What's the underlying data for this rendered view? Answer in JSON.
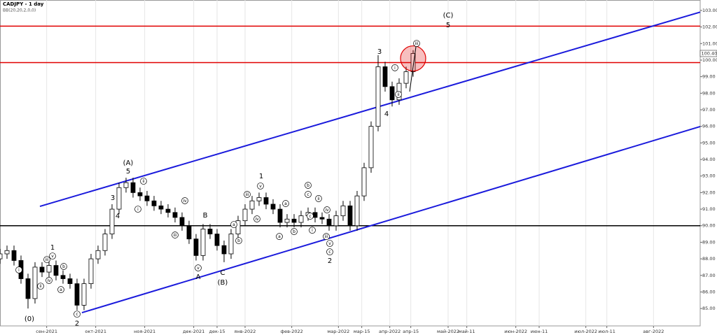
{
  "chart_data": {
    "type": "candlestick",
    "title": "CADJPY - 1 day",
    "subtitle": "BB(20,20,2,0,0)",
    "x": [
      0,
      3,
      6,
      9,
      12,
      15,
      18,
      21,
      24,
      27,
      30,
      33,
      36,
      39,
      42,
      45,
      48,
      51,
      54,
      57,
      60,
      63,
      66,
      69,
      72,
      75,
      78,
      81,
      84,
      87,
      90,
      93,
      96,
      99,
      102,
      105,
      108,
      111,
      114,
      117,
      120,
      123,
      126,
      129,
      132,
      135,
      138,
      141,
      144,
      147,
      150,
      153,
      156,
      159,
      162,
      165,
      168,
      171,
      174,
      177
    ],
    "open": [
      88.0,
      88.3,
      88.5,
      87.9,
      86.8,
      85.6,
      87.5,
      87.2,
      87.6,
      87.0,
      86.8,
      86.5,
      85.2,
      86.5,
      88.0,
      88.5,
      89.5,
      91.0,
      92.3,
      92.6,
      92.0,
      91.8,
      91.5,
      91.2,
      91.0,
      90.8,
      90.5,
      90.0,
      89.2,
      88.2,
      89.8,
      89.5,
      88.8,
      88.3,
      89.5,
      90.3,
      91.0,
      91.5,
      91.7,
      91.3,
      91.0,
      90.2,
      90.4,
      90.2,
      90.6,
      90.8,
      90.5,
      90.4,
      90.0,
      90.6,
      91.2,
      90.0,
      91.8,
      93.5,
      96.0,
      99.6,
      98.4,
      97.6,
      98.6,
      99.3
    ],
    "high": [
      88.6,
      88.8,
      88.8,
      88.2,
      87.1,
      87.8,
      87.8,
      87.9,
      87.9,
      87.3,
      87.1,
      86.8,
      86.8,
      88.3,
      88.8,
      89.8,
      91.3,
      92.6,
      92.9,
      92.9,
      92.3,
      92.1,
      91.8,
      91.5,
      91.3,
      91.1,
      90.8,
      90.3,
      89.5,
      90.1,
      90.1,
      89.8,
      89.1,
      89.8,
      90.6,
      91.3,
      91.8,
      92.0,
      92.0,
      91.6,
      91.3,
      90.7,
      90.7,
      90.9,
      91.1,
      91.1,
      90.8,
      90.7,
      90.9,
      91.5,
      91.5,
      92.1,
      93.8,
      96.3,
      100.3,
      99.9,
      98.7,
      98.9,
      99.6,
      100.6
    ],
    "low": [
      87.7,
      88.0,
      87.6,
      86.5,
      85.0,
      85.3,
      86.9,
      86.9,
      86.7,
      86.5,
      86.2,
      84.9,
      84.9,
      86.2,
      87.7,
      88.2,
      89.2,
      90.7,
      92.0,
      91.7,
      91.5,
      91.2,
      90.9,
      90.7,
      90.5,
      90.2,
      89.7,
      88.9,
      87.9,
      87.9,
      89.2,
      88.5,
      87.8,
      88.0,
      89.2,
      90.0,
      90.7,
      91.2,
      91.0,
      90.7,
      89.9,
      89.9,
      89.9,
      89.9,
      90.3,
      90.2,
      90.1,
      89.7,
      89.7,
      90.3,
      89.7,
      89.7,
      91.5,
      93.2,
      95.7,
      98.1,
      97.2,
      97.3,
      98.3,
      99.0
    ],
    "close": [
      88.3,
      88.5,
      87.9,
      86.8,
      85.6,
      87.5,
      87.2,
      87.6,
      87.0,
      86.8,
      86.5,
      85.2,
      86.5,
      88.0,
      88.5,
      89.5,
      91.0,
      92.3,
      92.6,
      92.0,
      91.8,
      91.5,
      91.2,
      91.0,
      90.8,
      90.5,
      90.0,
      89.2,
      88.2,
      89.8,
      89.5,
      88.8,
      88.3,
      89.5,
      90.3,
      91.0,
      91.5,
      91.7,
      91.3,
      91.0,
      90.2,
      90.4,
      90.2,
      90.6,
      90.8,
      90.5,
      90.4,
      90.0,
      90.6,
      91.2,
      90.0,
      91.8,
      93.5,
      96.0,
      99.6,
      98.4,
      97.6,
      98.6,
      99.3,
      100.4
    ],
    "up_color": "#ffffff",
    "down_color": "#000000",
    "xlim": [
      0,
      300
    ],
    "ylim": [
      83.95,
      103.63
    ],
    "xticks": [
      {
        "value": 20,
        "label": "сен-2021"
      },
      {
        "value": 41,
        "label": "окт-2021"
      },
      {
        "value": 62,
        "label": "ноя-2021"
      },
      {
        "value": 83,
        "label": "дек-2021"
      },
      {
        "value": 93,
        "label": "дек-15"
      },
      {
        "value": 105,
        "label": "янв-2022"
      },
      {
        "value": 125,
        "label": "фев-2022"
      },
      {
        "value": 145,
        "label": "мар-2022"
      },
      {
        "value": 155,
        "label": "мар-15"
      },
      {
        "value": 167,
        "label": "апр-2022"
      },
      {
        "value": 176,
        "label": "апр-15"
      },
      {
        "value": 192,
        "label": "май-2022"
      },
      {
        "value": 200,
        "label": "май-11"
      },
      {
        "value": 221,
        "label": "июн-2022"
      },
      {
        "value": 231,
        "label": "июн-11"
      },
      {
        "value": 251,
        "label": "июл-2022"
      },
      {
        "value": 260,
        "label": "июл-11"
      },
      {
        "value": 280,
        "label": "авг-2022"
      }
    ],
    "yticks": [
      {
        "value": 85,
        "label": "85.00"
      },
      {
        "value": 86,
        "label": "86.00"
      },
      {
        "value": 87,
        "label": "87.00"
      },
      {
        "value": 88,
        "label": "88.00"
      },
      {
        "value": 89,
        "label": "89.00"
      },
      {
        "value": 90,
        "label": "90.00"
      },
      {
        "value": 91,
        "label": "91.00"
      },
      {
        "value": 92,
        "label": "92.00"
      },
      {
        "value": 93,
        "label": "93.00"
      },
      {
        "value": 94,
        "label": "94.00"
      },
      {
        "value": 95,
        "label": "95.00"
      },
      {
        "value": 96,
        "label": "96.00"
      },
      {
        "value": 97,
        "label": "97.00"
      },
      {
        "value": 98,
        "label": "98.00"
      },
      {
        "value": 99,
        "label": "99.00"
      },
      {
        "value": 100,
        "label": "100.00"
      },
      {
        "value": 101,
        "label": "101.00"
      },
      {
        "value": 102,
        "label": "102.00"
      },
      {
        "value": 103,
        "label": "103.00"
      }
    ],
    "grid": "x",
    "last_price": {
      "value": 100.4,
      "label": "100.40"
    },
    "hlines": [
      {
        "value": 102.05,
        "color": "#e00000"
      },
      {
        "value": 99.85,
        "color": "#e00000"
      },
      {
        "value": 90.0,
        "color": "#000000"
      }
    ],
    "trendlines": [
      {
        "x": [
          17.1,
          300
        ],
        "y": [
          91.17,
          102.9
        ],
        "color": "#1a1adc"
      },
      {
        "x": [
          35.1,
          300
        ],
        "y": [
          84.75,
          95.99
        ],
        "color": "#1a1adc"
      }
    ],
    "arrow": {
      "x": [
        175.5,
        178.5
      ],
      "y": [
        98.1,
        101.1
      ],
      "color": "#000000"
    },
    "highlight": {
      "x": 177,
      "y": 100.1,
      "color": "#e00000"
    },
    "annotations": [
      {
        "text": "(0)",
        "x": 12.6,
        "y": 84.37
      },
      {
        "text": "2",
        "x": 33,
        "y": 84.1
      },
      {
        "text": "c",
        "x": 33,
        "y": 84.66,
        "circled": true
      },
      {
        "text": "1",
        "x": 22.5,
        "y": 88.68
      },
      {
        "text": "v",
        "x": 22.5,
        "y": 88.17,
        "circled": true
      },
      {
        "text": "iii",
        "x": 20.1,
        "y": 87.96,
        "circled": true
      },
      {
        "text": "iv",
        "x": 21,
        "y": 86.7,
        "circled": true
      },
      {
        "text": "b",
        "x": 27.3,
        "y": 87.54,
        "circled": true
      },
      {
        "text": "a",
        "x": 26.1,
        "y": 86.14,
        "circled": true
      },
      {
        "text": "ii",
        "x": 17.4,
        "y": 86.35,
        "circled": true
      },
      {
        "text": "i",
        "x": 8.1,
        "y": 87.33,
        "circled": true
      },
      {
        "text": "(A)",
        "x": 54.9,
        "y": 93.79
      },
      {
        "text": "5",
        "x": 54.9,
        "y": 93.28
      },
      {
        "text": "3",
        "x": 48.3,
        "y": 91.68
      },
      {
        "text": "4",
        "x": 50.4,
        "y": 90.58
      },
      {
        "text": "ii",
        "x": 61.5,
        "y": 92.69,
        "circled": true
      },
      {
        "text": "i",
        "x": 59.1,
        "y": 91.0,
        "circled": true
      },
      {
        "text": "iv",
        "x": 79.2,
        "y": 91.51,
        "circled": true
      },
      {
        "text": "iii",
        "x": 75,
        "y": 89.44,
        "circled": true
      },
      {
        "text": "v",
        "x": 84.9,
        "y": 87.45,
        "circled": true
      },
      {
        "text": "A",
        "x": 84.9,
        "y": 86.9
      },
      {
        "text": "B",
        "x": 87.9,
        "y": 90.62
      },
      {
        "text": "C",
        "x": 95.4,
        "y": 87.16
      },
      {
        "text": "(B)",
        "x": 95.4,
        "y": 86.57
      },
      {
        "text": "a",
        "x": 100.2,
        "y": 90.07,
        "circled": true
      },
      {
        "text": "b",
        "x": 102.3,
        "y": 89.1,
        "circled": true
      },
      {
        "text": "1",
        "x": 111.9,
        "y": 92.98
      },
      {
        "text": "v",
        "x": 111.6,
        "y": 92.4,
        "circled": true
      },
      {
        "text": "iii",
        "x": 105.9,
        "y": 91.89,
        "circled": true
      },
      {
        "text": "iv",
        "x": 110.1,
        "y": 90.41,
        "circled": true
      },
      {
        "text": "a",
        "x": 122.4,
        "y": 91.34,
        "circled": true
      },
      {
        "text": "b",
        "x": 126,
        "y": 89.65,
        "circled": true
      },
      {
        "text": "a",
        "x": 119.7,
        "y": 89.35,
        "circled": true
      },
      {
        "text": "b",
        "x": 132,
        "y": 92.44,
        "circled": true
      },
      {
        "text": "c",
        "x": 132,
        "y": 91.89,
        "circled": true
      },
      {
        "text": "c",
        "x": 132.9,
        "y": 90.58,
        "circled": true
      },
      {
        "text": "i",
        "x": 133.8,
        "y": 89.73,
        "circled": true
      },
      {
        "text": "ii",
        "x": 136.5,
        "y": 91.64,
        "circled": true
      },
      {
        "text": "iv",
        "x": 140.1,
        "y": 90.96,
        "circled": true
      },
      {
        "text": "iii",
        "x": 139.8,
        "y": 89.35,
        "circled": true
      },
      {
        "text": "v",
        "x": 141.3,
        "y": 88.93,
        "circled": true
      },
      {
        "text": "c",
        "x": 141.3,
        "y": 88.42,
        "circled": true
      },
      {
        "text": "2",
        "x": 141.3,
        "y": 87.88
      },
      {
        "text": "3",
        "x": 162.6,
        "y": 100.51
      },
      {
        "text": "4",
        "x": 165.6,
        "y": 96.75
      },
      {
        "text": "i",
        "x": 169.2,
        "y": 99.54,
        "circled": true
      },
      {
        "text": "ii",
        "x": 170.7,
        "y": 97.93,
        "circled": true
      },
      {
        "text": "iii",
        "x": 178.5,
        "y": 101.01,
        "circled": true
      },
      {
        "text": "(C)",
        "x": 192,
        "y": 102.7
      },
      {
        "text": "5",
        "x": 192,
        "y": 102.11
      }
    ]
  }
}
